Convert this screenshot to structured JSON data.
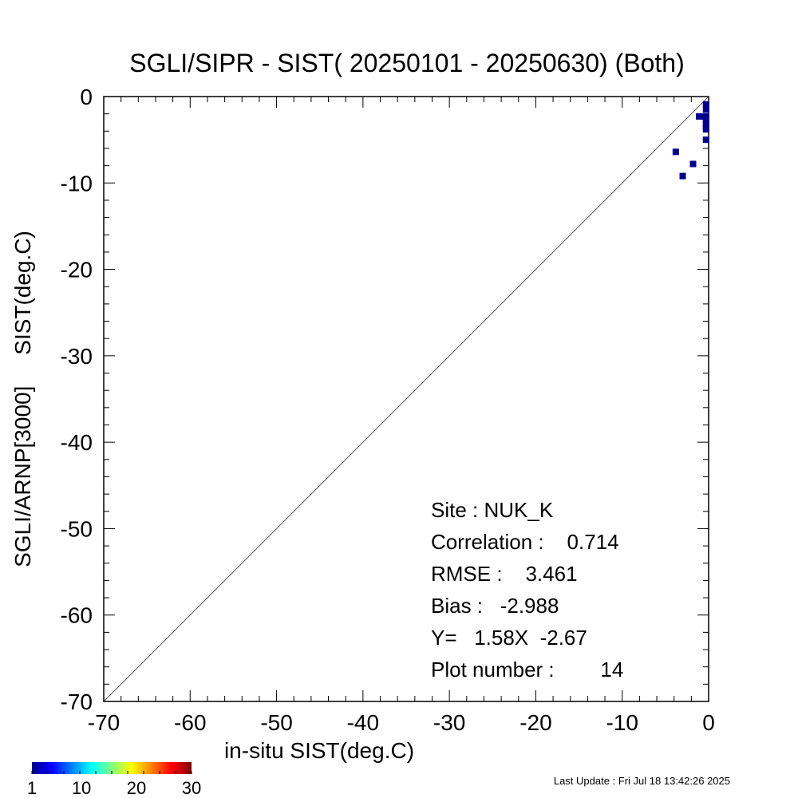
{
  "chart_data": {
    "type": "scatter",
    "title": "SGLI/SIPR - SIST( 20250101 - 20250630) (Both)",
    "xlabel": "in-situ SIST(deg.C)",
    "ylabel": "SGLI/ARNP[3000]     SIST(deg.C)",
    "xlim": [
      -70,
      0
    ],
    "ylim": [
      -70,
      0
    ],
    "xticks": [
      "-70",
      "-60",
      "-50",
      "-40",
      "-30",
      "-20",
      "-10",
      "0"
    ],
    "yticks": [
      "0",
      "-10",
      "-20",
      "-30",
      "-40",
      "-50",
      "-60",
      "-70"
    ],
    "points": [
      [
        -3.8,
        -6.4
      ],
      [
        -3.0,
        -9.2
      ],
      [
        -1.8,
        -7.8
      ],
      [
        -1.1,
        -2.3
      ],
      [
        -0.7,
        -2.3
      ],
      [
        -0.3,
        -0.9
      ],
      [
        -0.3,
        -2.3
      ],
      [
        -0.3,
        -2.7
      ],
      [
        -0.3,
        -3.1
      ],
      [
        -0.3,
        -3.5
      ],
      [
        -0.3,
        -3.8
      ],
      [
        -0.3,
        -5.0
      ],
      [
        -0.5,
        -2.3
      ],
      [
        -0.3,
        -1.5
      ]
    ],
    "point_color": "#00008f",
    "colorbar": {
      "labels": [
        "1",
        "10",
        "20",
        "30"
      ],
      "range": [
        1,
        30
      ]
    },
    "stats": {
      "site": "Site : NUK_K",
      "correlation": "Correlation :    0.714",
      "rmse": "RMSE :    3.461",
      "bias": "Bias :   -2.988",
      "fit": "Y=   1.58X  -2.67",
      "count": "Plot number :        14"
    }
  },
  "footer": {
    "last_update": "Last Update : Fri Jul 18 13:42:26 2025"
  }
}
